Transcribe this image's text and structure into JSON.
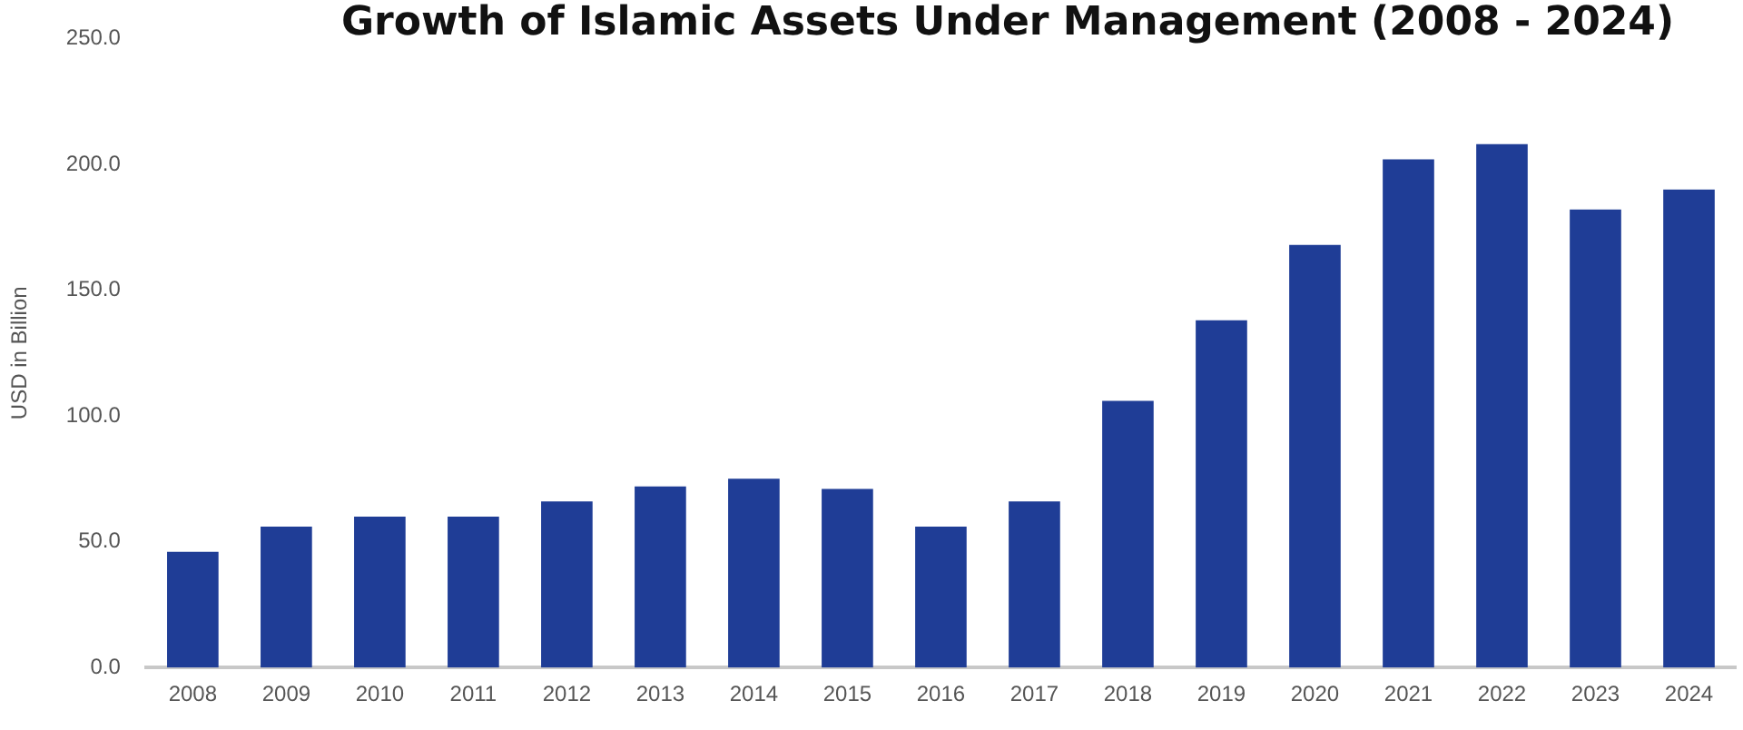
{
  "chart_data": {
    "type": "bar",
    "title": "Growth of Islamic Assets Under Management (2008 - 2024)",
    "ylabel": "USD in Billion",
    "categories": [
      "2008",
      "2009",
      "2010",
      "2011",
      "2012",
      "2013",
      "2014",
      "2015",
      "2016",
      "2017",
      "2018",
      "2019",
      "2020",
      "2021",
      "2022",
      "2023",
      "2024"
    ],
    "values": [
      46,
      56,
      60,
      60,
      66,
      72,
      75,
      71,
      56,
      66,
      106,
      138,
      168,
      202,
      208,
      182,
      190
    ],
    "color": "#1f3d96",
    "ylim": [
      0,
      250
    ],
    "yticks": [
      {
        "value": 0,
        "label": "0.0"
      },
      {
        "value": 50,
        "label": "50.0"
      },
      {
        "value": 100,
        "label": "100.0"
      },
      {
        "value": 150,
        "label": "150.0"
      },
      {
        "value": 200,
        "label": "200.0"
      },
      {
        "value": 250,
        "label": "250.0"
      }
    ],
    "grid": false,
    "legend": false
  }
}
